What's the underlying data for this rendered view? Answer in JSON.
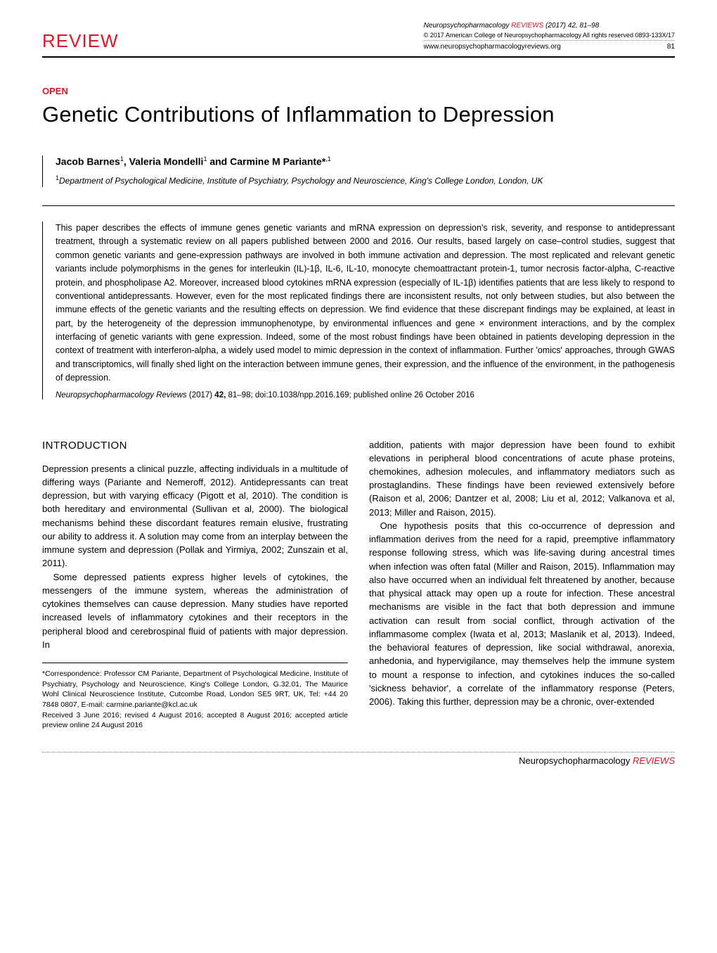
{
  "header": {
    "review_label": "REVIEW",
    "journal_line_prefix": "Neuropsychopharmacology",
    "journal_reviews_word": "REVIEWS",
    "journal_line_suffix": "(2017) 42, 81–98",
    "copyright": "© 2017 American College of Neuropsychopharmacology   All rights reserved 0893-133X/17",
    "url": "www.neuropsychopharmacologyreviews.org",
    "page_number": "81"
  },
  "colors": {
    "accent": "#d9192a",
    "text": "#000000",
    "background": "#ffffff",
    "dotted_rule": "#888888"
  },
  "open_label": "OPEN",
  "title": "Genetic Contributions of Inflammation to Depression",
  "authors_html": "Jacob Barnes<sup>1</sup>, Valeria Mondelli<sup>1</sup> and Carmine M Pariante*<sup>,1</sup>",
  "affiliation_html": "<sup>1</sup>Department of Psychological Medicine, Institute of Psychiatry, Psychology and Neuroscience, King's College London, London, UK",
  "abstract": "This paper describes the effects of immune genes genetic variants and mRNA expression on depression's risk, severity, and response to antidepressant treatment, through a systematic review on all papers published between 2000 and 2016. Our results, based largely on case–control studies, suggest that common genetic variants and gene-expression pathways are involved in both immune activation and depression. The most replicated and relevant genetic variants include polymorphisms in the genes for interleukin (IL)-1β, IL-6, IL-10, monocyte chemoattractant protein-1, tumor necrosis factor-alpha, C-reactive protein, and phospholipase A2. Moreover, increased blood cytokines mRNA expression (especially of IL-1β) identifies patients that are less likely to respond to conventional antidepressants. However, even for the most replicated findings there are inconsistent results, not only between studies, but also between the immune effects of the genetic variants and the resulting effects on depression. We find evidence that these discrepant findings may be explained, at least in part, by the heterogeneity of the depression immunophenotype, by environmental influences and gene × environment interactions, and by the complex interfacing of genetic variants with gene expression. Indeed, some of the most robust findings have been obtained in patients developing depression in the context of treatment with interferon-alpha, a widely used model to mimic depression in the context of inflammation. Further 'omics' approaches, through GWAS and transcriptomics, will finally shed light on the interaction between immune genes, their expression, and the influence of the environment, in the pathogenesis of depression.",
  "citation": {
    "journal": "Neuropsychopharmacology Reviews",
    "year_vol": "(2017) ",
    "volume": "42,",
    "pages": " 81–98; ",
    "doi": "doi:10.1038/npp.2016.169; ",
    "published": "published online 26 October 2016"
  },
  "body": {
    "intro_heading": "INTRODUCTION",
    "col1_p1": "Depression presents a clinical puzzle, affecting individuals in a multitude of differing ways (Pariante and Nemeroff, 2012). Antidepressants can treat depression, but with varying efficacy (Pigott et al, 2010). The condition is both hereditary and environmental (Sullivan et al, 2000). The biological mechanisms behind these discordant features remain elusive, frustrating our ability to address it. A solution may come from an interplay between the immune system and depression (Pollak and Yirmiya, 2002; Zunszain et al, 2011).",
    "col1_p2": "Some depressed patients express higher levels of cytokines, the messengers of the immune system, whereas the administration of cytokines themselves can cause depression. Many studies have reported increased levels of inflammatory cytokines and their receptors in the peripheral blood and cerebrospinal fluid of patients with major depression. In",
    "col2_p1": "addition, patients with major depression have been found to exhibit elevations in peripheral blood concentrations of acute phase proteins, chemokines, adhesion molecules, and inflammatory mediators such as prostaglandins. These findings have been reviewed extensively before (Raison et al, 2006; Dantzer et al, 2008; Liu et al, 2012; Valkanova et al, 2013; Miller and Raison, 2015).",
    "col2_p2": "One hypothesis posits that this co-occurrence of depression and inflammation derives from the need for a rapid, preemptive inflammatory response following stress, which was life-saving during ancestral times when infection was often fatal (Miller and Raison, 2015). Inflammation may also have occurred when an individual felt threatened by another, because that physical attack may open up a route for infection. These ancestral mechanisms are visible in the fact that both depression and immune activation can result from social conflict, through activation of the inflammasome complex (Iwata et al, 2013; Maslanik et al, 2013). Indeed, the behavioral features of depression, like social withdrawal, anorexia, anhedonia, and hypervigilance, may themselves help the immune system to mount a response to infection, and cytokines induces the so-called 'sickness behavior', a correlate of the inflammatory response (Peters, 2006). Taking this further, depression may be a chronic, over-extended"
  },
  "footnote": {
    "correspondence": "*Correspondence: Professor CM Pariante, Department of Psychological Medicine, Institute of Psychiatry, Psychology and Neuroscience, King's College London, G.32.01, The Maurice Wohl Clinical Neuroscience Institute, Cutcombe Road, London SE5 9RT, UK, Tel: +44 20 7848 0807, E-mail: carmine.pariante@kcl.ac.uk",
    "received": "Received 3 June 2016; revised 4 August 2016; accepted 8 August 2016; accepted article preview online 24 August 2016"
  },
  "footer": {
    "journal": "Neuropsychopharmacology",
    "reviews": "REVIEWS"
  }
}
